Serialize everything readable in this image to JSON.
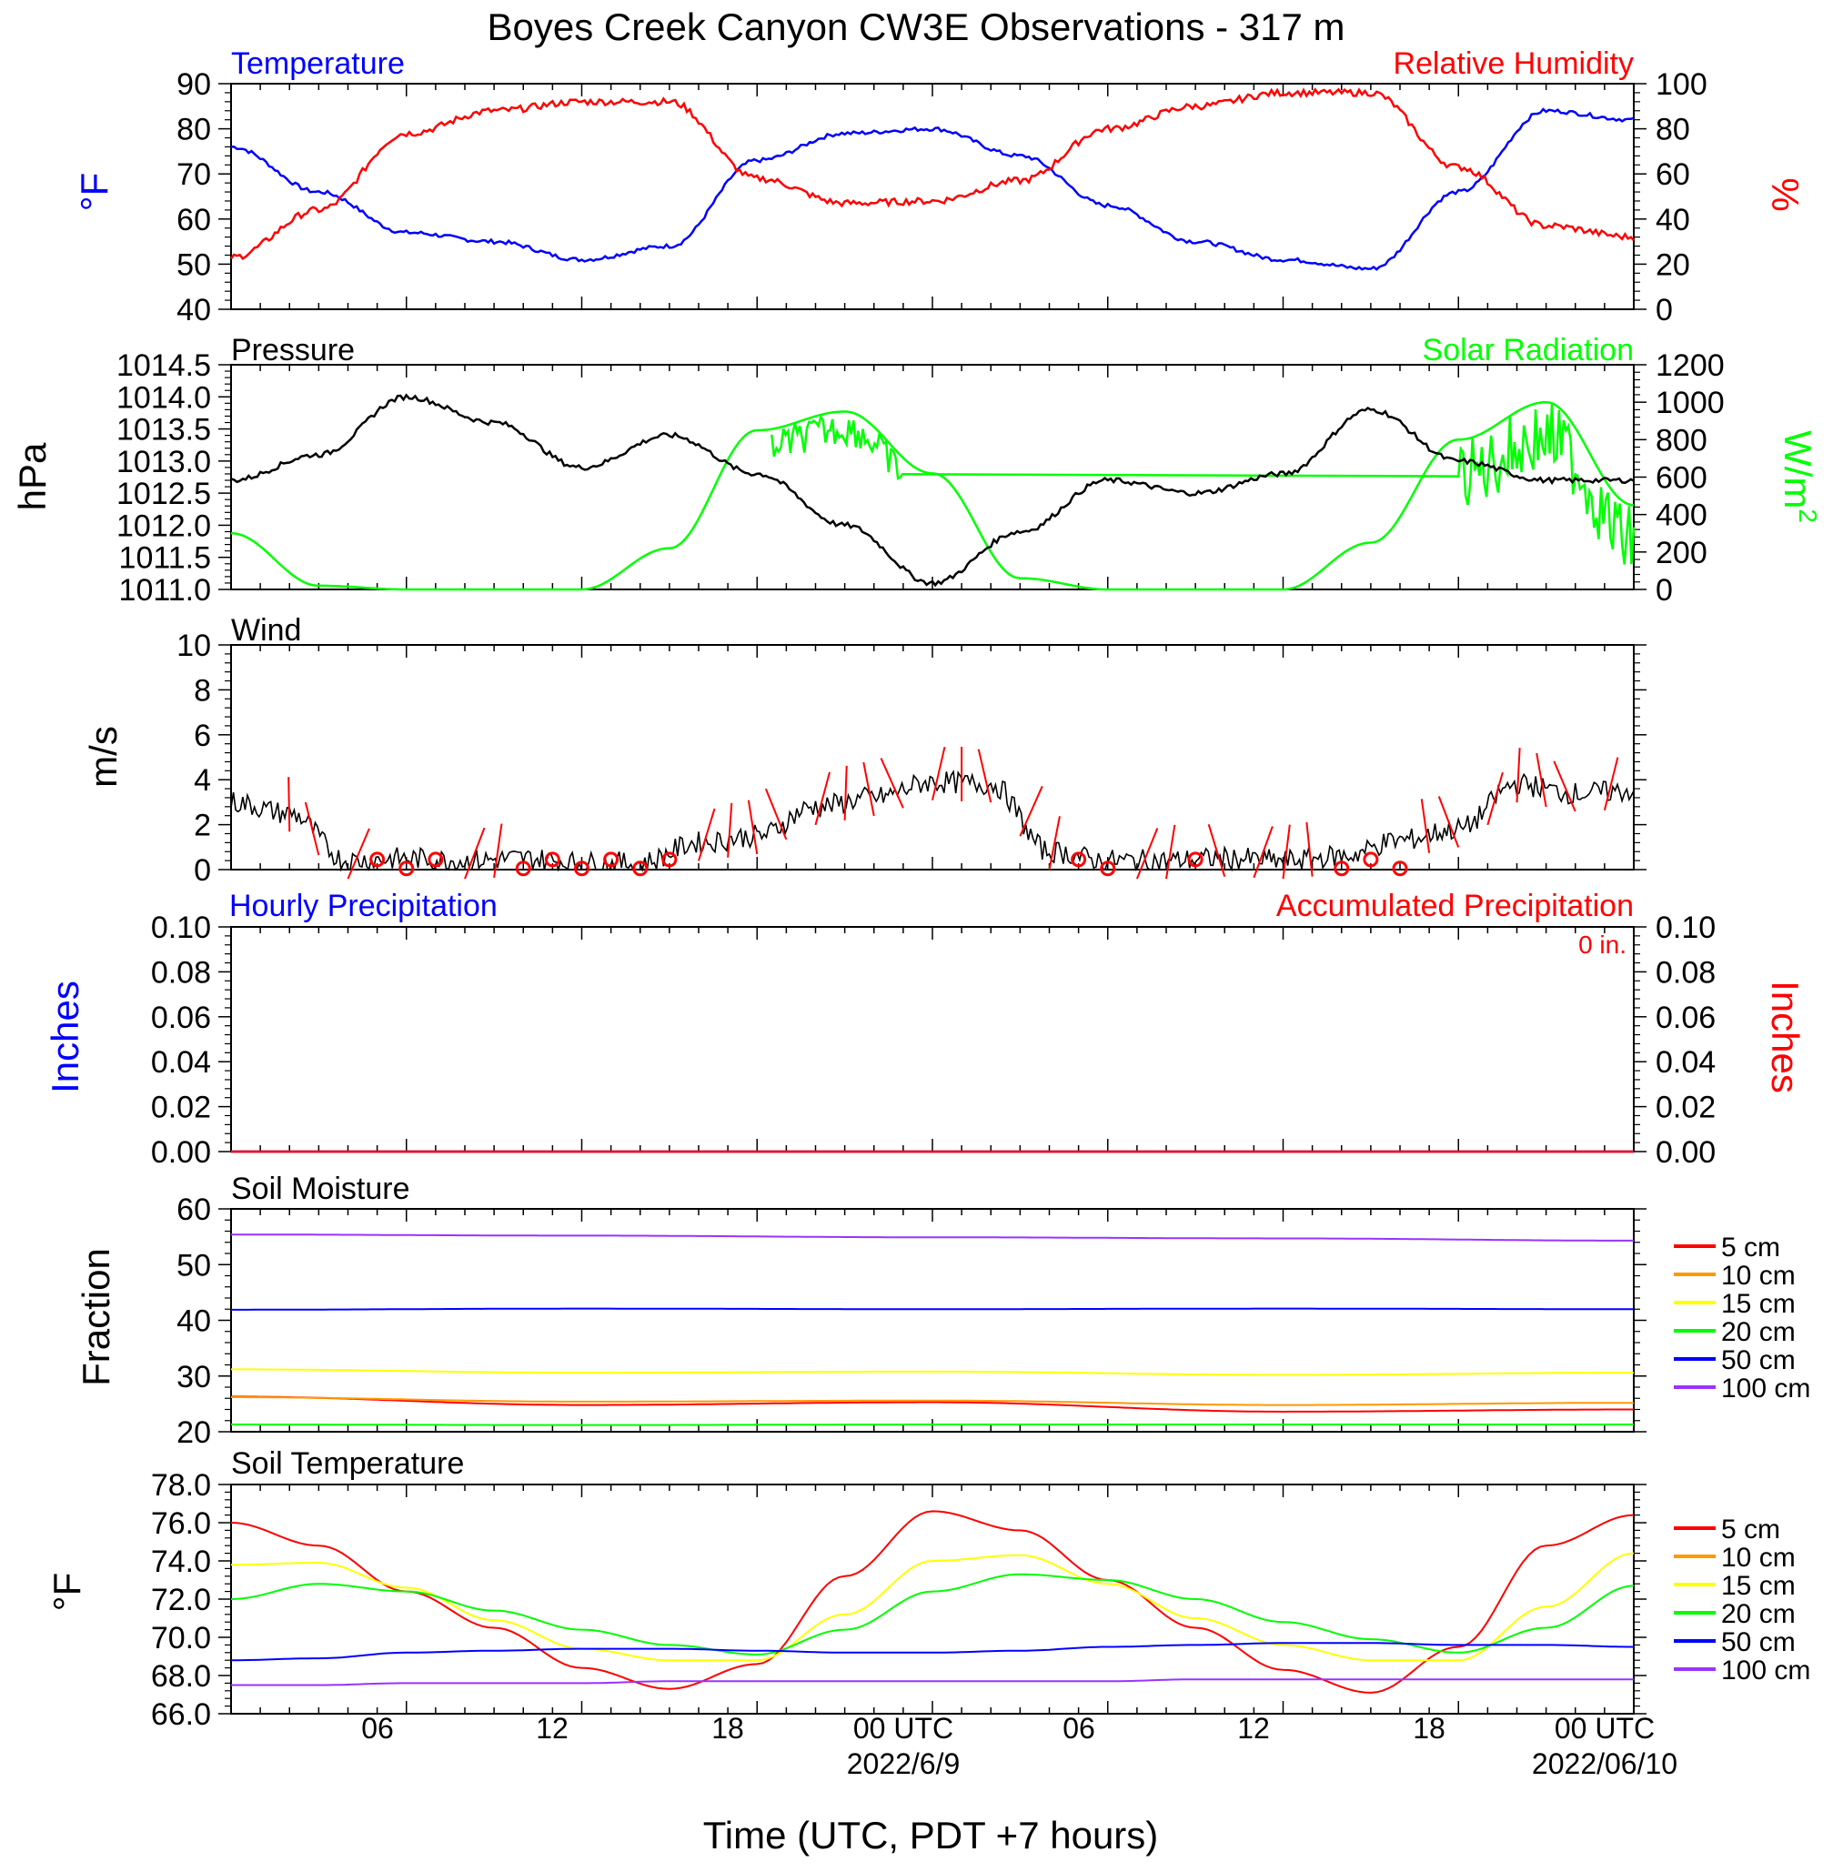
{
  "title": "Boyes Creek Canyon CW3E Observations - 317 m",
  "x_axis": {
    "title": "Time (UTC, PDT +7 hours)",
    "ticks": [
      "06",
      "12",
      "18",
      "00 UTC",
      "06",
      "12",
      "18",
      "00 UTC"
    ],
    "dates": [
      "2022/6/9",
      "2022/06/10"
    ]
  },
  "colors": {
    "blue": "#0000ff",
    "red": "#ff0000",
    "green": "#00ff00",
    "black": "#000000",
    "orange": "#ff9900",
    "yellow": "#ffff00",
    "purple": "#9933ff"
  },
  "chart_data": [
    {
      "type": "line",
      "labels": {
        "left": "Temperature",
        "right": "Relative Humidity"
      },
      "left_axis": {
        "unit": "°F",
        "range": [
          40,
          90
        ],
        "ticks": [
          "40",
          "50",
          "60",
          "70",
          "80",
          "90"
        ]
      },
      "right_axis": {
        "unit": "%",
        "range": [
          0,
          100
        ],
        "ticks": [
          "0",
          "20",
          "40",
          "60",
          "80",
          "100"
        ]
      },
      "x_hours": [
        0,
        3,
        6,
        9,
        12,
        15,
        18,
        21,
        24,
        27,
        30,
        33,
        36,
        39,
        42,
        45,
        48
      ],
      "series": [
        {
          "name": "Temperature",
          "axis": "left",
          "color": "#0000ff",
          "y": [
            76,
            66,
            57,
            55,
            51,
            54,
            73,
            79,
            80,
            74,
            63,
            55,
            51,
            49,
            66,
            84,
            82
          ]
        },
        {
          "name": "Relative Humidity",
          "axis": "right",
          "color": "#ff0000",
          "y": [
            23,
            44,
            78,
            88,
            92,
            92,
            58,
            47,
            48,
            57,
            80,
            90,
            96,
            96,
            63,
            37,
            32
          ]
        }
      ]
    },
    {
      "type": "line",
      "labels": {
        "left": "Pressure",
        "right": "Solar Radiation"
      },
      "left_axis": {
        "unit": "hPa",
        "range": [
          1011.0,
          1014.5
        ],
        "ticks": [
          "1011.0",
          "1011.5",
          "1012.0",
          "1012.5",
          "1013.0",
          "1013.5",
          "1014.0",
          "1014.5"
        ]
      },
      "right_axis": {
        "unit": "W/m2",
        "range": [
          0,
          1200
        ],
        "ticks": [
          "0",
          "200",
          "400",
          "600",
          "800",
          "1000",
          "1200"
        ]
      },
      "x_hours": [
        0,
        3,
        6,
        9,
        12,
        15,
        18,
        21,
        24,
        27,
        30,
        33,
        36,
        39,
        42,
        45,
        48
      ],
      "series": [
        {
          "name": "Pressure",
          "axis": "left",
          "color": "#000000",
          "y": [
            1012.7,
            1013.1,
            1014.0,
            1013.6,
            1012.9,
            1013.4,
            1012.8,
            1012.0,
            1011.1,
            1011.9,
            1012.7,
            1012.5,
            1012.8,
            1013.8,
            1013.0,
            1012.7,
            1012.7
          ]
        },
        {
          "name": "Solar Radiation",
          "axis": "right",
          "color": "#00ff00",
          "y": [
            300,
            20,
            0,
            0,
            0,
            220,
            850,
            950,
            620,
            60,
            0,
            0,
            0,
            250,
            800,
            1000,
            450
          ]
        }
      ]
    },
    {
      "type": "line",
      "labels": {
        "left": "Wind"
      },
      "left_axis": {
        "unit": "m/s",
        "range": [
          0,
          10
        ],
        "ticks": [
          "0",
          "2",
          "4",
          "6",
          "8",
          "10"
        ]
      },
      "x_hours": [
        0,
        2,
        4,
        6,
        8,
        10,
        12,
        14,
        16,
        18,
        20,
        22,
        24,
        26,
        28,
        30,
        32,
        34,
        36,
        38,
        40,
        42,
        44,
        46,
        48
      ],
      "series": [
        {
          "name": "Wind speed",
          "axis": "left",
          "color": "#000000",
          "y": [
            3.0,
            2.5,
            0.4,
            0.5,
            0.4,
            0.5,
            0.3,
            0.3,
            1.2,
            1.5,
            2.8,
            3.2,
            3.9,
            3.8,
            0.8,
            0.4,
            0.4,
            0.5,
            0.4,
            0.6,
            1.3,
            1.8,
            3.8,
            3.4,
            3.5
          ]
        }
      ],
      "calm_markers_hours": [
        5,
        6,
        7,
        10,
        11,
        12,
        13,
        14,
        15,
        29,
        30,
        33,
        38,
        39,
        40
      ]
    },
    {
      "type": "line",
      "labels": {
        "left": "Hourly Precipitation",
        "right": "Accumulated Precipitation",
        "total": "0 in."
      },
      "left_axis": {
        "unit": "Inches",
        "range": [
          0,
          0.1
        ],
        "ticks": [
          "0.00",
          "0.02",
          "0.04",
          "0.06",
          "0.08",
          "0.10"
        ]
      },
      "right_axis": {
        "unit": "Inches",
        "range": [
          0,
          0.1
        ],
        "ticks": [
          "0.00",
          "0.02",
          "0.04",
          "0.06",
          "0.08",
          "0.10"
        ]
      },
      "x_hours": [
        0,
        48
      ],
      "series": [
        {
          "name": "Hourly Precipitation",
          "axis": "left",
          "color": "#0000ff",
          "y": [
            0,
            0
          ]
        },
        {
          "name": "Accumulated Precipitation",
          "axis": "right",
          "color": "#ff0000",
          "y": [
            0,
            0
          ]
        }
      ]
    },
    {
      "type": "line",
      "labels": {
        "left": "Soil Moisture"
      },
      "left_axis": {
        "unit": "Fraction",
        "range": [
          20,
          60
        ],
        "ticks": [
          "20",
          "30",
          "40",
          "50",
          "60"
        ]
      },
      "x_hours": [
        0,
        12,
        24,
        36,
        48
      ],
      "series": [
        {
          "name": "5 cm",
          "color": "#ff0000",
          "y": [
            26.3,
            24.8,
            25.3,
            23.6,
            24.0
          ]
        },
        {
          "name": "10 cm",
          "color": "#ff9900",
          "y": [
            26.2,
            25.4,
            25.6,
            24.8,
            25.2
          ]
        },
        {
          "name": "15 cm",
          "color": "#ffff00",
          "y": [
            31.2,
            30.6,
            30.8,
            30.2,
            30.6
          ]
        },
        {
          "name": "20 cm",
          "color": "#00ff00",
          "y": [
            21.3,
            21.2,
            21.3,
            21.3,
            21.3
          ]
        },
        {
          "name": "50 cm",
          "color": "#0000ff",
          "y": [
            41.9,
            42.1,
            42.0,
            42.1,
            42.0
          ]
        },
        {
          "name": "100 cm",
          "color": "#9933ff",
          "y": [
            55.4,
            55.2,
            54.9,
            54.7,
            54.3
          ]
        }
      ]
    },
    {
      "type": "line",
      "labels": {
        "left": "Soil Temperature"
      },
      "left_axis": {
        "unit": "°F",
        "range": [
          66.0,
          78.0
        ],
        "ticks": [
          "66.0",
          "68.0",
          "70.0",
          "72.0",
          "74.0",
          "76.0",
          "78.0"
        ]
      },
      "x_hours": [
        0,
        3,
        6,
        9,
        12,
        15,
        18,
        21,
        24,
        27,
        30,
        33,
        36,
        39,
        42,
        45,
        48
      ],
      "series": [
        {
          "name": "5 cm",
          "color": "#ff0000",
          "y": [
            76.0,
            74.8,
            72.4,
            70.5,
            68.4,
            67.3,
            68.6,
            73.2,
            76.6,
            75.6,
            73.0,
            70.5,
            68.3,
            67.1,
            69.5,
            74.8,
            76.4
          ]
        },
        {
          "name": "10 cm",
          "color": "#ff9900",
          "y": [
            null
          ]
        },
        {
          "name": "15 cm",
          "color": "#ffff00",
          "y": [
            73.8,
            73.9,
            72.6,
            70.9,
            69.4,
            68.8,
            68.8,
            71.2,
            74.0,
            74.3,
            72.8,
            71.0,
            69.6,
            68.8,
            68.8,
            71.6,
            74.4
          ]
        },
        {
          "name": "20 cm",
          "color": "#00ff00",
          "y": [
            72.0,
            72.8,
            72.4,
            71.4,
            70.4,
            69.6,
            69.1,
            70.4,
            72.4,
            73.3,
            73.0,
            72.0,
            70.8,
            69.9,
            69.2,
            70.5,
            72.7
          ]
        },
        {
          "name": "50 cm",
          "color": "#0000ff",
          "y": [
            68.8,
            68.9,
            69.2,
            69.3,
            69.4,
            69.4,
            69.3,
            69.2,
            69.2,
            69.3,
            69.5,
            69.6,
            69.7,
            69.7,
            69.6,
            69.6,
            69.5
          ]
        },
        {
          "name": "100 cm",
          "color": "#9933ff",
          "y": [
            67.5,
            67.5,
            67.6,
            67.6,
            67.6,
            67.7,
            67.7,
            67.7,
            67.7,
            67.7,
            67.7,
            67.8,
            67.8,
            67.8,
            67.8,
            67.8,
            67.8
          ]
        }
      ]
    }
  ],
  "legend": [
    "5 cm",
    "10 cm",
    "15 cm",
    "20 cm",
    "50 cm",
    "100 cm"
  ]
}
